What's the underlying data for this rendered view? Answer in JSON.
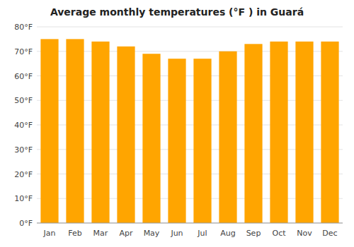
{
  "chart_data": {
    "type": "bar",
    "title": "Average monthly temperatures (°F ) in Guará",
    "categories": [
      "Jan",
      "Feb",
      "Mar",
      "Apr",
      "May",
      "Jun",
      "Jul",
      "Aug",
      "Sep",
      "Oct",
      "Nov",
      "Dec"
    ],
    "values": [
      75,
      75,
      74,
      72,
      69,
      67,
      67,
      70,
      73,
      74,
      74,
      74
    ],
    "color": "#FFA500",
    "ylim": [
      0,
      80
    ],
    "yticks": [
      {
        "value": 0,
        "label": "0°F"
      },
      {
        "value": 10,
        "label": "10°F"
      },
      {
        "value": 20,
        "label": "20°F"
      },
      {
        "value": 30,
        "label": "30°F"
      },
      {
        "value": 40,
        "label": "40°F"
      },
      {
        "value": 50,
        "label": "50°F"
      },
      {
        "value": 60,
        "label": "60°F"
      },
      {
        "value": 70,
        "label": "70°F"
      },
      {
        "value": 80,
        "label": "80°F"
      }
    ],
    "grid": true
  }
}
